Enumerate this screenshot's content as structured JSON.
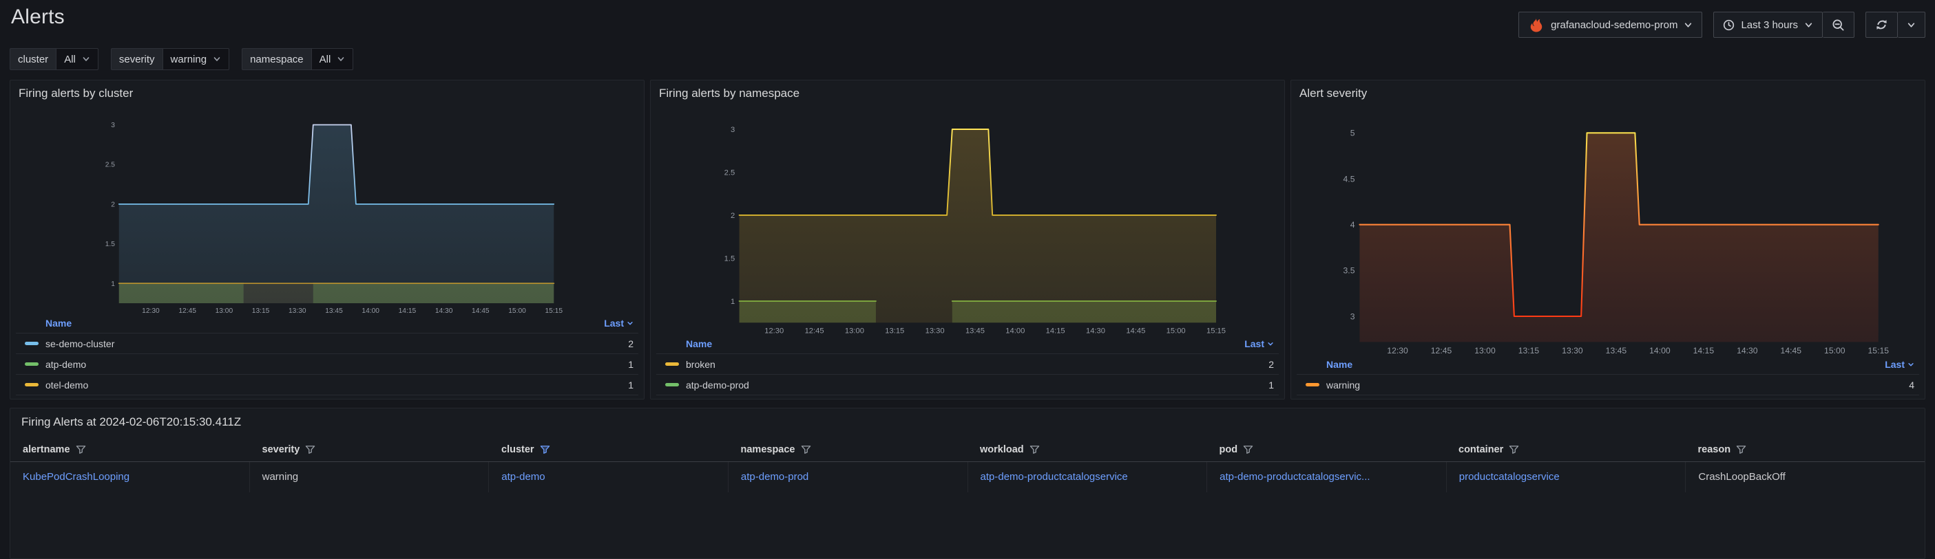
{
  "page": {
    "title": "Alerts"
  },
  "toolbar": {
    "datasource_label": "grafanacloud-sedemo-prom",
    "time_range_label": "Last 3 hours"
  },
  "colors": {
    "link_blue": "#6E9FFF",
    "prometheus_orange": "#E6522C",
    "warning_orange": "#FF9830"
  },
  "filters": [
    {
      "label": "cluster",
      "value": "All"
    },
    {
      "label": "severity",
      "value": "warning"
    },
    {
      "label": "namespace",
      "value": "All"
    }
  ],
  "chart_data": [
    {
      "type": "area",
      "title": "Firing alerts by cluster",
      "xlim": [
        12.283,
        15.25
      ],
      "ylim": [
        0.75,
        3.25
      ],
      "grid": false,
      "legend_columns": [
        "Name",
        "Last"
      ],
      "x_ticks": [
        {
          "v": 12.5,
          "label": "12:30"
        },
        {
          "v": 12.75,
          "label": "12:45"
        },
        {
          "v": 13.0,
          "label": "13:00"
        },
        {
          "v": 13.25,
          "label": "13:15"
        },
        {
          "v": 13.5,
          "label": "13:30"
        },
        {
          "v": 13.75,
          "label": "13:45"
        },
        {
          "v": 14.0,
          "label": "14:00"
        },
        {
          "v": 14.25,
          "label": "14:15"
        },
        {
          "v": 14.5,
          "label": "14:30"
        },
        {
          "v": 14.75,
          "label": "14:45"
        },
        {
          "v": 15.0,
          "label": "15:00"
        },
        {
          "v": 15.25,
          "label": "15:15"
        }
      ],
      "y_ticks": [
        {
          "v": 1,
          "label": "1"
        },
        {
          "v": 1.5,
          "label": "1.5"
        },
        {
          "v": 2,
          "label": "2"
        },
        {
          "v": 2.5,
          "label": "2.5"
        },
        {
          "v": 3,
          "label": "3"
        }
      ],
      "series": [
        {
          "name": "se-demo-cluster",
          "color": "#77BEEA",
          "last": 2,
          "stroke_stops": [
            {
              "v": 3,
              "color": "#C9D4F1"
            },
            {
              "v": 2,
              "color": "#77BEEA"
            }
          ],
          "fill_top": "rgba(120,190,235,0.22)",
          "fill_bottom": "rgba(120,190,235,0.10)",
          "segments": [
            [
              [
                12.283,
                2
              ],
              [
                13.575,
                2
              ],
              [
                13.608,
                3
              ],
              [
                13.867,
                3
              ],
              [
                13.9,
                2
              ],
              [
                15.25,
                2
              ]
            ]
          ]
        },
        {
          "name": "atp-demo",
          "color": "#73BF69",
          "last": 1,
          "stroke_stops": [
            {
              "v": 1,
              "color": "#5E9455"
            }
          ],
          "fill_top": "rgba(115,191,105,0.35)",
          "fill_bottom": "rgba(115,191,105,0.25)",
          "segments": [
            [
              [
                12.283,
                1
              ],
              [
                13.133,
                1
              ]
            ],
            [
              [
                13.608,
                1
              ],
              [
                15.25,
                1
              ]
            ]
          ]
        },
        {
          "name": "otel-demo",
          "color": "#EAB839",
          "last": 1,
          "stroke_stops": [
            {
              "v": 1,
              "color": "#B08A2E"
            }
          ],
          "fill_top": "rgba(234,184,57,0.16)",
          "fill_bottom": "rgba(234,184,57,0.10)",
          "segments": [
            [
              [
                12.283,
                1
              ],
              [
                15.25,
                1
              ]
            ]
          ]
        }
      ]
    },
    {
      "type": "area",
      "title": "Firing alerts by namespace",
      "xlim": [
        12.283,
        15.25
      ],
      "ylim": [
        0.75,
        3.28
      ],
      "grid": false,
      "legend_columns": [
        "Name",
        "Last"
      ],
      "x_ticks": [
        {
          "v": 12.5,
          "label": "12:30"
        },
        {
          "v": 12.75,
          "label": "12:45"
        },
        {
          "v": 13.0,
          "label": "13:00"
        },
        {
          "v": 13.25,
          "label": "13:15"
        },
        {
          "v": 13.5,
          "label": "13:30"
        },
        {
          "v": 13.75,
          "label": "13:45"
        },
        {
          "v": 14.0,
          "label": "14:00"
        },
        {
          "v": 14.25,
          "label": "14:15"
        },
        {
          "v": 14.5,
          "label": "14:30"
        },
        {
          "v": 14.75,
          "label": "14:45"
        },
        {
          "v": 15.0,
          "label": "15:00"
        },
        {
          "v": 15.25,
          "label": "15:15"
        }
      ],
      "y_ticks": [
        {
          "v": 1,
          "label": "1"
        },
        {
          "v": 1.5,
          "label": "1.5"
        },
        {
          "v": 2,
          "label": "2"
        },
        {
          "v": 2.5,
          "label": "2.5"
        },
        {
          "v": 3,
          "label": "3"
        }
      ],
      "series": [
        {
          "name": "broken",
          "color": "#EAB839",
          "last": 2,
          "stroke_stops": [
            {
              "v": 3,
              "color": "#FFE458"
            },
            {
              "v": 2,
              "color": "#D9B52E"
            }
          ],
          "fill_top": "rgba(234,184,57,0.25)",
          "fill_bottom": "rgba(234,184,57,0.12)",
          "segments": [
            [
              [
                12.283,
                2
              ],
              [
                13.575,
                2
              ],
              [
                13.608,
                3
              ],
              [
                13.833,
                3
              ],
              [
                13.858,
                2
              ],
              [
                15.25,
                2
              ]
            ]
          ]
        },
        {
          "name": "atp-demo-prod",
          "color": "#73BF69",
          "last": 1,
          "stroke_stops": [
            {
              "v": 1,
              "color": "#7FA93F"
            }
          ],
          "fill_top": "rgba(140,180,80,0.35)",
          "fill_bottom": "rgba(140,180,80,0.25)",
          "segments": [
            [
              [
                12.283,
                1
              ],
              [
                13.133,
                1
              ]
            ],
            [
              [
                13.608,
                1
              ],
              [
                15.25,
                1
              ]
            ]
          ]
        }
      ]
    },
    {
      "type": "area",
      "title": "Alert severity",
      "xlim": [
        12.283,
        15.25
      ],
      "ylim": [
        2.72,
        5.3
      ],
      "grid": false,
      "legend_columns": [
        "Name",
        "Last"
      ],
      "x_ticks": [
        {
          "v": 12.5,
          "label": "12:30"
        },
        {
          "v": 12.75,
          "label": "12:45"
        },
        {
          "v": 13.0,
          "label": "13:00"
        },
        {
          "v": 13.25,
          "label": "13:15"
        },
        {
          "v": 13.5,
          "label": "13:30"
        },
        {
          "v": 13.75,
          "label": "13:45"
        },
        {
          "v": 14.0,
          "label": "14:00"
        },
        {
          "v": 14.25,
          "label": "14:15"
        },
        {
          "v": 14.5,
          "label": "14:30"
        },
        {
          "v": 14.75,
          "label": "14:45"
        },
        {
          "v": 15.0,
          "label": "15:00"
        },
        {
          "v": 15.25,
          "label": "15:15"
        }
      ],
      "y_ticks": [
        {
          "v": 3,
          "label": "3"
        },
        {
          "v": 3.5,
          "label": "3.5"
        },
        {
          "v": 4,
          "label": "4"
        },
        {
          "v": 4.5,
          "label": "4.5"
        },
        {
          "v": 5,
          "label": "5"
        }
      ],
      "series": [
        {
          "name": "warning",
          "color": "#FF9830",
          "last": 4,
          "stroke_stops": [
            {
              "v": 5,
              "color": "#F5DC4D"
            },
            {
              "v": 4,
              "color": "#FF8438"
            },
            {
              "v": 3,
              "color": "#FF3B14"
            }
          ],
          "fill_top": "rgba(255,130,50,0.28)",
          "fill_bottom": "rgba(255,80,40,0.10)",
          "segments": [
            [
              [
                12.283,
                4
              ],
              [
                13.142,
                4
              ],
              [
                13.167,
                3
              ],
              [
                13.55,
                3
              ],
              [
                13.583,
                5
              ],
              [
                13.858,
                5
              ],
              [
                13.883,
                4
              ],
              [
                15.25,
                4
              ]
            ]
          ]
        }
      ]
    }
  ],
  "table_panel": {
    "title": "Firing Alerts at 2024-02-06T20:15:30.411Z",
    "columns": [
      {
        "label": "alertname",
        "filter_active": false
      },
      {
        "label": "severity",
        "filter_active": false
      },
      {
        "label": "cluster",
        "filter_active": true
      },
      {
        "label": "namespace",
        "filter_active": false
      },
      {
        "label": "workload",
        "filter_active": false
      },
      {
        "label": "pod",
        "filter_active": false
      },
      {
        "label": "container",
        "filter_active": false
      },
      {
        "label": "reason",
        "filter_active": false
      }
    ],
    "rows": [
      {
        "cells": [
          {
            "text": "KubePodCrashLooping",
            "link": true
          },
          {
            "text": "warning",
            "link": false
          },
          {
            "text": "atp-demo",
            "link": true
          },
          {
            "text": "atp-demo-prod",
            "link": true
          },
          {
            "text": "atp-demo-productcatalogservice",
            "link": true
          },
          {
            "text": "atp-demo-productcatalogservic...",
            "link": true
          },
          {
            "text": "productcatalogservice",
            "link": true
          },
          {
            "text": "CrashLoopBackOff",
            "link": false
          }
        ]
      }
    ]
  }
}
